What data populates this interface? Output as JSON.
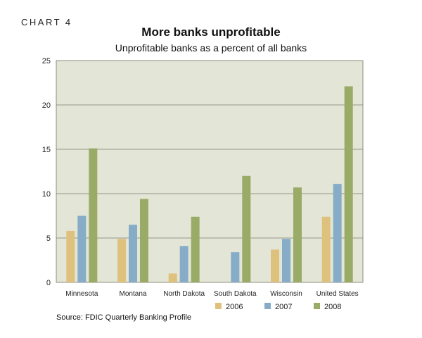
{
  "header": {
    "chart_number": "CHART 4",
    "title": "More banks unprofitable",
    "subtitle": "Unprofitable banks as a percent of all banks"
  },
  "footer": {
    "source": "Source: FDIC Quarterly Banking Profile"
  },
  "chart_data": {
    "type": "bar",
    "title": "More banks unprofitable",
    "subtitle": "Unprofitable banks as a percent of all banks",
    "xlabel": "",
    "ylabel": "",
    "ylim": [
      0,
      25
    ],
    "yticks": [
      0,
      5,
      10,
      15,
      20,
      25
    ],
    "grid": true,
    "legend_position": "bottom-right",
    "plot_background": "#e3e6d6",
    "categories": [
      "Minnesota",
      "Montana",
      "North Dakota",
      "South Dakota",
      "Wisconsin",
      "United States"
    ],
    "series": [
      {
        "name": "2006",
        "color": "#dfc17e",
        "values": [
          5.8,
          4.9,
          1.0,
          0,
          3.7,
          7.4
        ]
      },
      {
        "name": "2007",
        "color": "#86acc8",
        "values": [
          7.5,
          6.5,
          4.1,
          3.4,
          4.9,
          11.1
        ]
      },
      {
        "name": "2008",
        "color": "#9aab67",
        "values": [
          15.1,
          9.4,
          7.4,
          12.0,
          10.7,
          22.1
        ]
      }
    ]
  }
}
